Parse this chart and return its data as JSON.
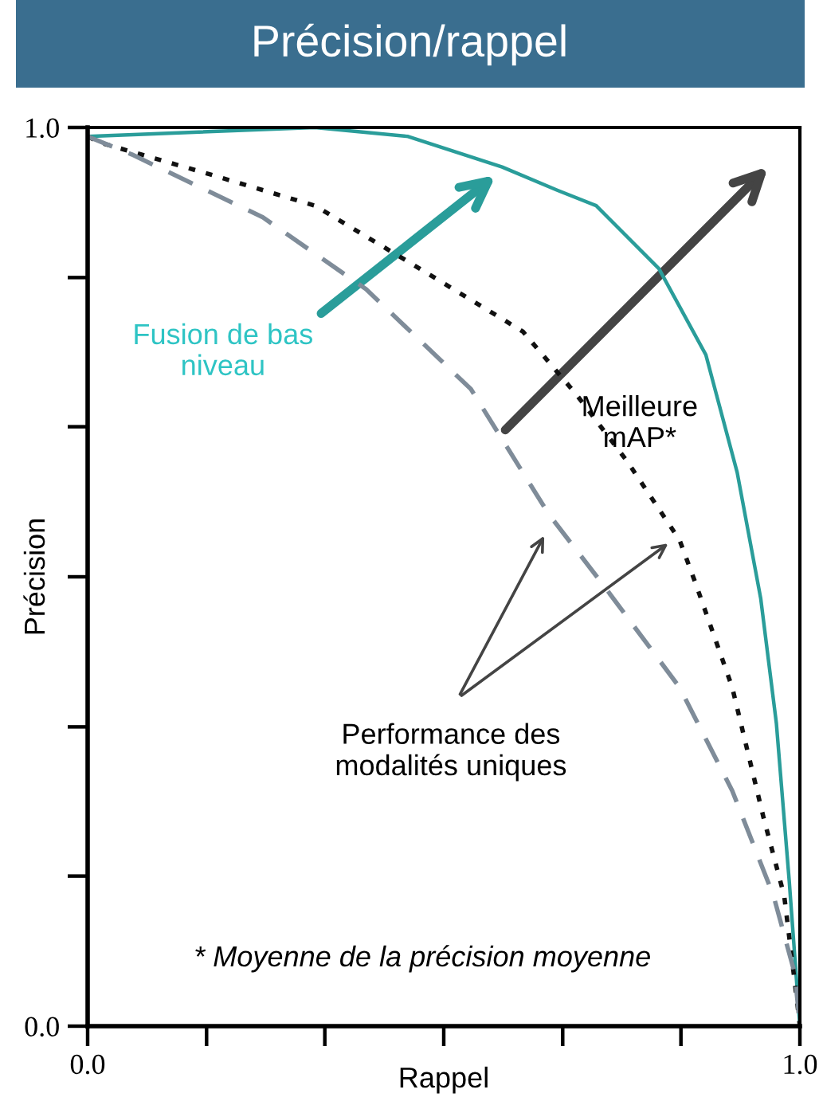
{
  "chart_data": {
    "type": "line",
    "title": "Précision/rappel",
    "xlabel": "Rappel",
    "ylabel": "Précision",
    "xlim": [
      0.0,
      1.0
    ],
    "ylim": [
      0.0,
      1.0
    ],
    "xticks": [
      {
        "value": 0.0,
        "label": "0.0"
      },
      {
        "value": 0.167,
        "label": null
      },
      {
        "value": 0.333,
        "label": null
      },
      {
        "value": 0.5,
        "label": null
      },
      {
        "value": 0.667,
        "label": null
      },
      {
        "value": 0.833,
        "label": null
      },
      {
        "value": 1.0,
        "label": "1.0"
      }
    ],
    "yticks": [
      {
        "value": 0.0,
        "label": "0.0"
      },
      {
        "value": 0.167,
        "label": null
      },
      {
        "value": 0.333,
        "label": null
      },
      {
        "value": 0.5,
        "label": null
      },
      {
        "value": 0.667,
        "label": null
      },
      {
        "value": 0.833,
        "label": null
      },
      {
        "value": 1.0,
        "label": "1.0"
      }
    ],
    "grid": false,
    "legend": false,
    "marker": "none",
    "series": [
      {
        "color": "#2a9d9a",
        "line_style": "solid",
        "x": [
          0.0,
          0.319,
          0.45,
          0.582,
          0.66,
          0.714,
          0.802,
          0.868,
          0.912,
          0.945,
          0.967,
          0.985,
          1.0
        ],
        "values": [
          0.99,
          1.0,
          0.99,
          0.956,
          0.93,
          0.913,
          0.843,
          0.747,
          0.616,
          0.476,
          0.337,
          0.162,
          0.0
        ]
      },
      {
        "color": "#111111",
        "line_style": "dotted",
        "x": [
          0.0,
          0.018,
          0.171,
          0.319,
          0.466,
          0.611,
          0.686,
          0.758,
          0.831,
          0.853,
          0.905,
          0.949,
          0.978,
          0.996,
          1.0
        ],
        "values": [
          0.99,
          0.983,
          0.948,
          0.913,
          0.843,
          0.773,
          0.703,
          0.628,
          0.541,
          0.494,
          0.377,
          0.232,
          0.145,
          0.028,
          0.0
        ]
      },
      {
        "color": "#7f8c99",
        "line_style": "dashed",
        "x": [
          0.0,
          0.062,
          0.246,
          0.391,
          0.538,
          0.648,
          0.721,
          0.831,
          0.905,
          0.963,
          0.993,
          1.0
        ],
        "values": [
          0.99,
          0.97,
          0.9,
          0.82,
          0.709,
          0.569,
          0.494,
          0.377,
          0.262,
          0.145,
          0.058,
          0.0
        ]
      }
    ],
    "annotations": [
      "Fusion de bas\nniveau",
      "Meilleure\nmAP*",
      "Performance des\nmodalités uniques",
      "* Moyenne de la précision moyenne"
    ]
  }
}
